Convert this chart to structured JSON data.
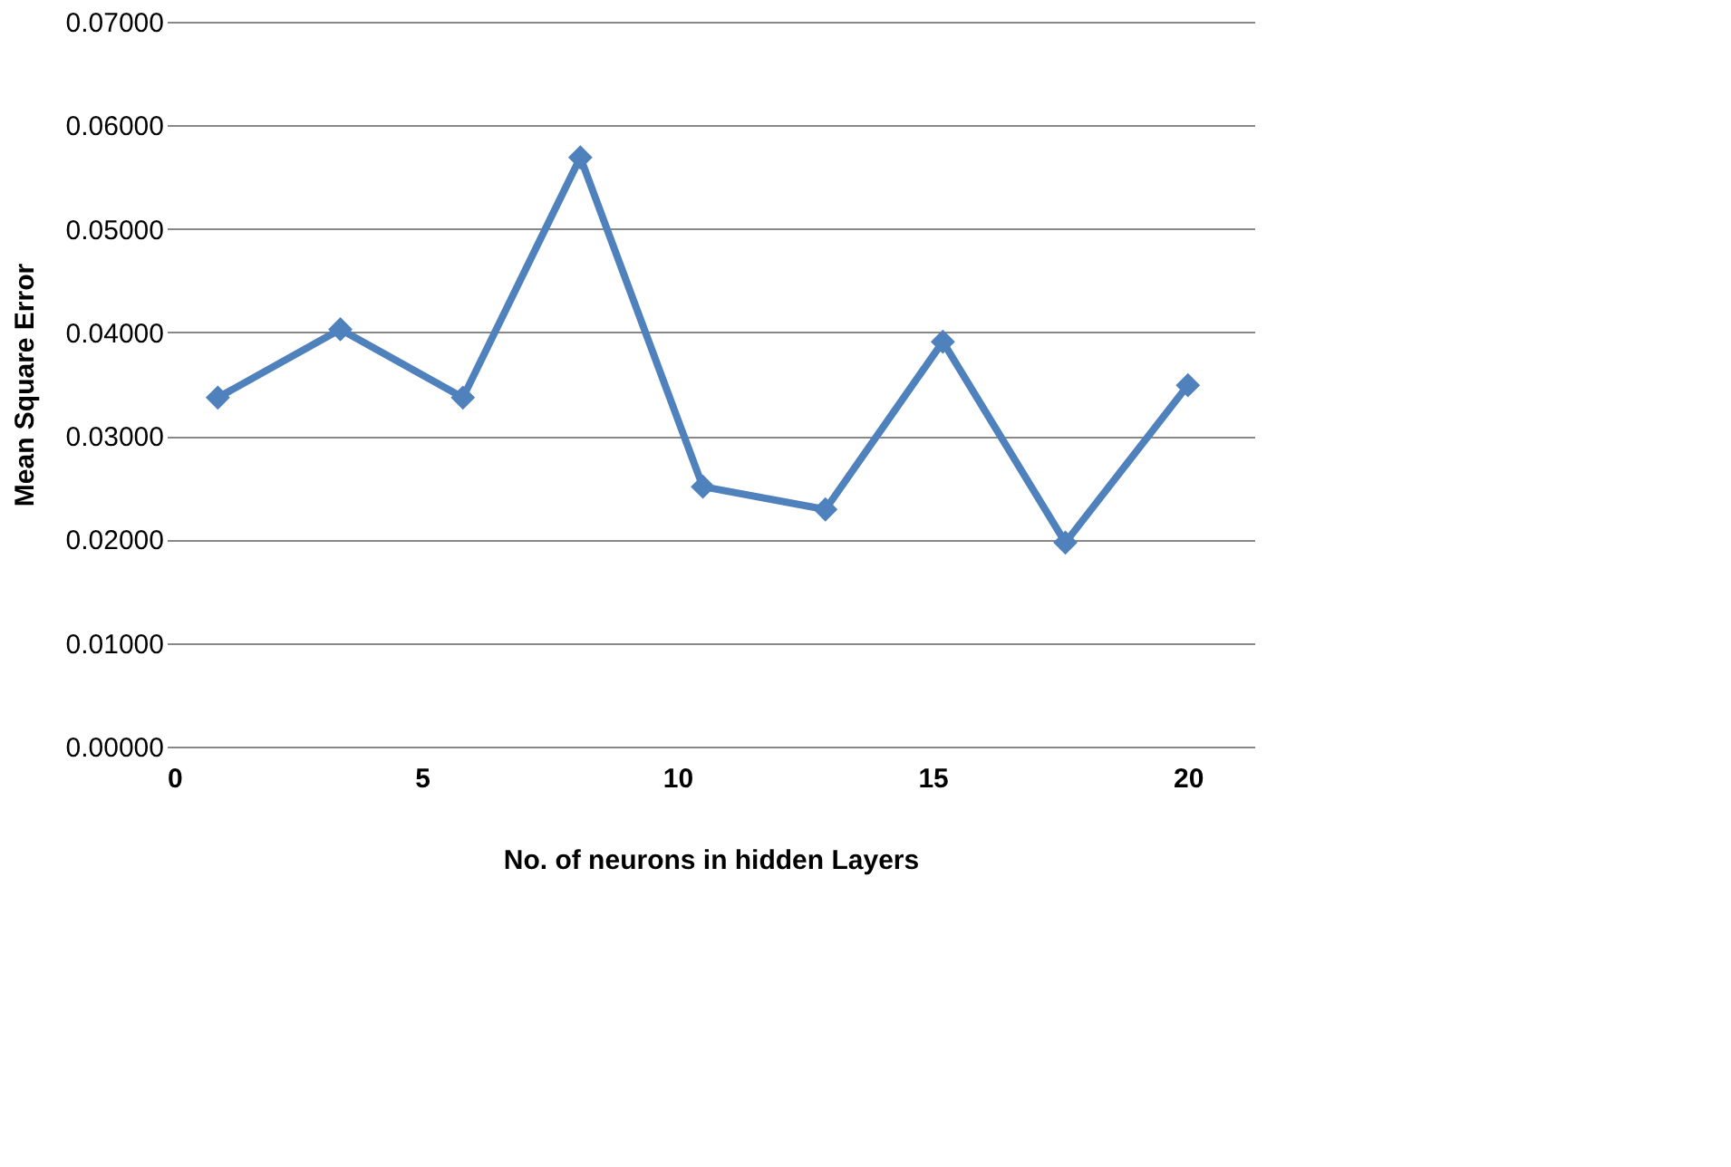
{
  "chart_data": {
    "type": "line",
    "xlabel": "No. of neurons in hidden Layers",
    "ylabel": "Mean Square Error",
    "x": [
      1.0,
      3.4,
      5.8,
      8.1,
      10.5,
      12.9,
      15.2,
      17.6,
      20.0
    ],
    "series": [
      {
        "color": "#4f81bd",
        "values": [
          0.0337,
          0.0403,
          0.0337,
          0.0569,
          0.0251,
          0.0229,
          0.0391,
          0.0197,
          0.0349
        ]
      }
    ],
    "xlim": [
      0,
      21.3
    ],
    "xticks": [
      0,
      5,
      10,
      15,
      20
    ],
    "ylim": [
      0,
      0.07
    ],
    "yticks": [
      {
        "value": 0,
        "label": "0.00000"
      },
      {
        "value": 0.01,
        "label": "0.01000"
      },
      {
        "value": 0.02,
        "label": "0.02000"
      },
      {
        "value": 0.03,
        "label": "0.03000"
      },
      {
        "value": 0.04,
        "label": "0.04000"
      },
      {
        "value": 0.05,
        "label": "0.05000"
      },
      {
        "value": 0.06,
        "label": "0.06000"
      },
      {
        "value": 0.07,
        "label": "0.07000"
      }
    ],
    "grid": "y",
    "marker": "diamond",
    "line_style": "solid"
  }
}
